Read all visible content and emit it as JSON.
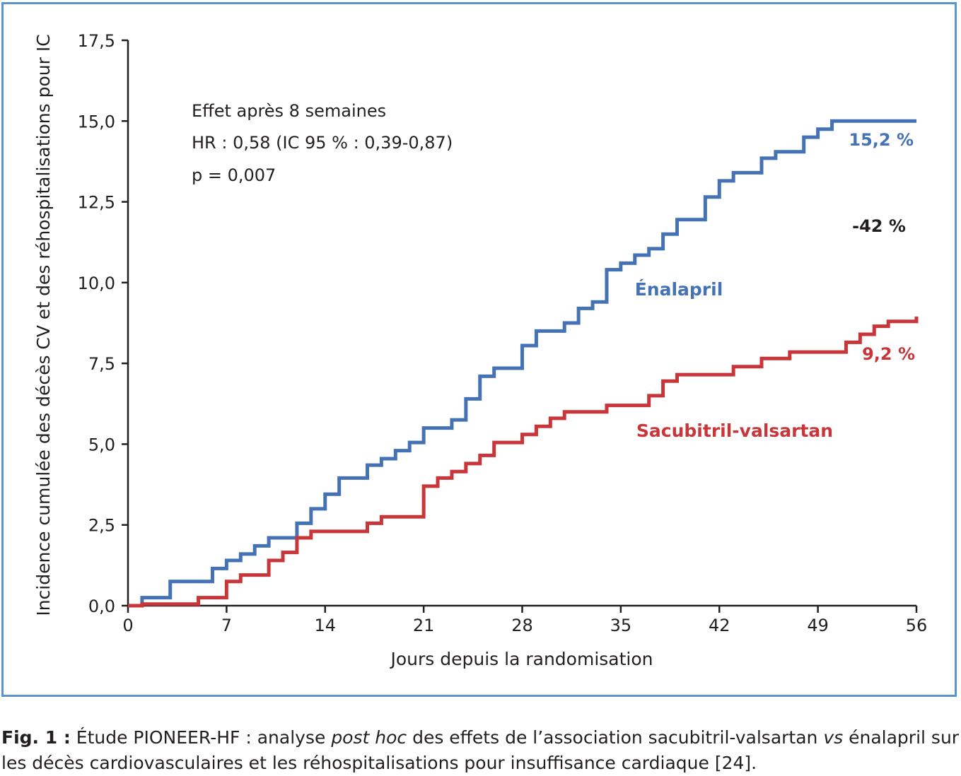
{
  "chart_data": {
    "type": "line",
    "step": true,
    "xlabel": "Jours depuis la randomisation",
    "ylabel": "Incidence cumulée des décès CV et des réhospitalisations pour IC",
    "xlim": [
      0,
      56
    ],
    "ylim": [
      0,
      17.5
    ],
    "x_ticks": [
      "0",
      "7",
      "14",
      "21",
      "28",
      "35",
      "42",
      "49",
      "56"
    ],
    "y_ticks": [
      "0,0",
      "2,5",
      "5,0",
      "7,5",
      "10,0",
      "12,5",
      "15,0",
      "17,5"
    ],
    "grid": false,
    "annotations": {
      "effect_title": "Effet après 8 semaines",
      "hr": "HR : 0,58 (IC 95 % : 0,39-0,87)",
      "p": "p = 0,007",
      "reduction": "-42 %",
      "enalapril_end": "15,2 %",
      "sacubitril_end": "9,2 %"
    },
    "series": [
      {
        "name": "Énalapril",
        "color": "#4472b5",
        "x": [
          0,
          1,
          3,
          6,
          7,
          8,
          9,
          10,
          12,
          13,
          14,
          15,
          17,
          18,
          19,
          20,
          21,
          23,
          24,
          25,
          26,
          28,
          29,
          31,
          32,
          33,
          34,
          35,
          36,
          37,
          38,
          39,
          41,
          42,
          43,
          45,
          46,
          48,
          49,
          50,
          56
        ],
        "y": [
          0,
          0.25,
          0.75,
          1.15,
          1.4,
          1.6,
          1.85,
          2.1,
          2.55,
          3.0,
          3.45,
          3.95,
          4.35,
          4.55,
          4.8,
          5.05,
          5.5,
          5.75,
          6.4,
          7.1,
          7.35,
          8.05,
          8.5,
          8.75,
          9.2,
          9.4,
          10.4,
          10.6,
          10.85,
          11.05,
          11.5,
          11.95,
          12.65,
          13.15,
          13.4,
          13.85,
          14.05,
          14.5,
          14.75,
          15.0,
          15.0
        ]
      },
      {
        "name": "Sacubitril-valsartan",
        "color": "#c8363a",
        "x": [
          0,
          1,
          5,
          7,
          8,
          9,
          10,
          11,
          12,
          13,
          17,
          18,
          19,
          21,
          22,
          23,
          24,
          25,
          26,
          28,
          29,
          30,
          31,
          32,
          34,
          37,
          38,
          39,
          43,
          45,
          47,
          49,
          51,
          52,
          53,
          54,
          56
        ],
        "y": [
          0,
          0.05,
          0.25,
          0.75,
          0.95,
          0.95,
          1.4,
          1.65,
          2.1,
          2.3,
          2.55,
          2.75,
          2.75,
          3.7,
          3.95,
          4.15,
          4.4,
          4.65,
          5.05,
          5.3,
          5.55,
          5.8,
          6.0,
          6.0,
          6.2,
          6.5,
          6.95,
          7.15,
          7.4,
          7.65,
          7.85,
          7.85,
          8.15,
          8.4,
          8.65,
          8.8,
          8.95
        ]
      }
    ]
  },
  "caption": {
    "fig_label": "Fig. 1 :",
    "part1": " Étude PIONEER-HF : analyse ",
    "italic1": "post hoc",
    "part2": " des effets de l’association sacubitril-valsartan ",
    "italic2": "vs",
    "part3": " énalapril sur les décès cardiovasculaires et les réhospitalisations pour insuffisance cardiaque [24]."
  }
}
